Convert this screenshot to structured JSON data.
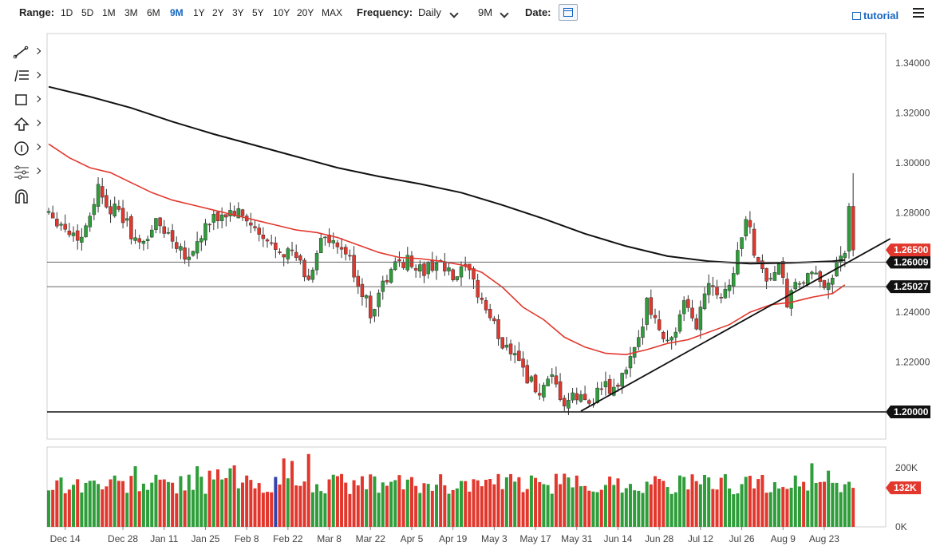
{
  "toolbar": {
    "range_label": "Range:",
    "ranges": [
      "1D",
      "5D",
      "1M",
      "3M",
      "6M",
      "9M",
      "1Y",
      "2Y",
      "3Y",
      "5Y",
      "10Y",
      "20Y",
      "MAX"
    ],
    "active_range": "9M",
    "frequency_label": "Frequency:",
    "frequency_value": "Daily",
    "period_value": "9M",
    "date_label": "Date:",
    "tutorial_label": "tutorial",
    "accent_color": "#1565c0"
  },
  "tools": [
    {
      "icon": "line-tool-icon"
    },
    {
      "icon": "fib-tool-icon"
    },
    {
      "icon": "rectangle-tool-icon"
    },
    {
      "icon": "arrow-tool-icon"
    },
    {
      "icon": "annotation-tool-icon"
    },
    {
      "icon": "pitchfork-tool-icon"
    },
    {
      "icon": "magnet-tool-icon"
    }
  ],
  "chart_data": {
    "type": "candlestick",
    "colors": {
      "up": "#2e9d3a",
      "down": "#e2372c",
      "ma50": "#e2372c",
      "ma200": "#111111",
      "volume_highlight": "#3344aa"
    },
    "ylim": [
      1.195,
      1.345
    ],
    "yticks": [
      "1.34000",
      "1.32000",
      "1.30000",
      "1.28000",
      "1.26000",
      "1.24000",
      "1.22000",
      "1.20000"
    ],
    "ytick_values": [
      1.34,
      1.32,
      1.3,
      1.28,
      1.26,
      1.24,
      1.22,
      1.2
    ],
    "xticks": [
      "Dec 14",
      "Dec 28",
      "Jan 11",
      "Jan 25",
      "Feb 8",
      "Feb 22",
      "Mar 8",
      "Mar 22",
      "Apr 5",
      "Apr 19",
      "May 3",
      "May 17",
      "May 31",
      "Jun 14",
      "Jun 28",
      "Jul 12",
      "Jul 26",
      "Aug 9",
      "Aug 23"
    ],
    "xtick_index": [
      4,
      18,
      28,
      38,
      48,
      58,
      68,
      78,
      88,
      98,
      108,
      118,
      128,
      138,
      148,
      158,
      168,
      178,
      188
    ],
    "n_bars": 188,
    "waypoints": [
      [
        0,
        1.281
      ],
      [
        5,
        1.272
      ],
      [
        8,
        1.27
      ],
      [
        12,
        1.29
      ],
      [
        15,
        1.282
      ],
      [
        18,
        1.278
      ],
      [
        22,
        1.266
      ],
      [
        26,
        1.276
      ],
      [
        30,
        1.27
      ],
      [
        34,
        1.262
      ],
      [
        38,
        1.274
      ],
      [
        42,
        1.279
      ],
      [
        45,
        1.28
      ],
      [
        48,
        1.277
      ],
      [
        52,
        1.268
      ],
      [
        56,
        1.266
      ],
      [
        60,
        1.262
      ],
      [
        63,
        1.252
      ],
      [
        66,
        1.271
      ],
      [
        69,
        1.266
      ],
      [
        72,
        1.264
      ],
      [
        75,
        1.252
      ],
      [
        78,
        1.24
      ],
      [
        81,
        1.251
      ],
      [
        85,
        1.261
      ],
      [
        88,
        1.26
      ],
      [
        91,
        1.256
      ],
      [
        94,
        1.261
      ],
      [
        98,
        1.253
      ],
      [
        101,
        1.257
      ],
      [
        104,
        1.248
      ],
      [
        107,
        1.238
      ],
      [
        110,
        1.227
      ],
      [
        113,
        1.225
      ],
      [
        116,
        1.214
      ],
      [
        119,
        1.207
      ],
      [
        122,
        1.212
      ],
      [
        125,
        1.203
      ],
      [
        128,
        1.206
      ],
      [
        131,
        1.204
      ],
      [
        134,
        1.21
      ],
      [
        137,
        1.208
      ],
      [
        140,
        1.217
      ],
      [
        143,
        1.227
      ],
      [
        145,
        1.247
      ],
      [
        148,
        1.232
      ],
      [
        151,
        1.229
      ],
      [
        154,
        1.242
      ],
      [
        157,
        1.235
      ],
      [
        160,
        1.254
      ],
      [
        163,
        1.247
      ],
      [
        166,
        1.256
      ],
      [
        169,
        1.279
      ],
      [
        171,
        1.265
      ],
      [
        174,
        1.253
      ],
      [
        177,
        1.258
      ],
      [
        179,
        1.244
      ],
      [
        182,
        1.252
      ],
      [
        185,
        1.254
      ],
      [
        188,
        1.252
      ],
      [
        190,
        1.255
      ],
      [
        192,
        1.26
      ],
      [
        193,
        1.266
      ],
      [
        194,
        1.282
      ],
      [
        195,
        1.265
      ]
    ],
    "support_lines": [
      {
        "y": 1.26009,
        "label": "1.26009"
      },
      {
        "y": 1.25027,
        "label": "1.25027"
      },
      {
        "y": 1.2,
        "label": "1.20000"
      }
    ],
    "trendline": [
      [
        129,
        1.2003
      ],
      [
        204,
        1.2695
      ]
    ],
    "last_price_label": "1.26500",
    "last_price": 1.265,
    "ma50": [
      [
        0,
        1.3075
      ],
      [
        5,
        1.302
      ],
      [
        10,
        1.298
      ],
      [
        15,
        1.296
      ],
      [
        20,
        1.292
      ],
      [
        25,
        1.288
      ],
      [
        30,
        1.285
      ],
      [
        35,
        1.283
      ],
      [
        40,
        1.281
      ],
      [
        45,
        1.279
      ],
      [
        50,
        1.277
      ],
      [
        55,
        1.275
      ],
      [
        60,
        1.273
      ],
      [
        65,
        1.272
      ],
      [
        70,
        1.27
      ],
      [
        75,
        1.267
      ],
      [
        80,
        1.264
      ],
      [
        85,
        1.262
      ],
      [
        90,
        1.2615
      ],
      [
        95,
        1.2605
      ],
      [
        100,
        1.259
      ],
      [
        105,
        1.256
      ],
      [
        110,
        1.25
      ],
      [
        115,
        1.242
      ],
      [
        120,
        1.237
      ],
      [
        125,
        1.23
      ],
      [
        130,
        1.226
      ],
      [
        135,
        1.2235
      ],
      [
        140,
        1.223
      ],
      [
        145,
        1.225
      ],
      [
        150,
        1.2275
      ],
      [
        155,
        1.229
      ],
      [
        160,
        1.232
      ],
      [
        165,
        1.235
      ],
      [
        170,
        1.24
      ],
      [
        175,
        1.243
      ],
      [
        180,
        1.244
      ],
      [
        185,
        1.246
      ],
      [
        190,
        1.2475
      ],
      [
        193,
        1.251
      ]
    ],
    "ma200": [
      [
        0,
        1.3305
      ],
      [
        10,
        1.3265
      ],
      [
        20,
        1.322
      ],
      [
        30,
        1.3165
      ],
      [
        40,
        1.3115
      ],
      [
        50,
        1.307
      ],
      [
        60,
        1.3025
      ],
      [
        70,
        1.298
      ],
      [
        80,
        1.2945
      ],
      [
        90,
        1.2915
      ],
      [
        100,
        1.288
      ],
      [
        110,
        1.283
      ],
      [
        120,
        1.2775
      ],
      [
        130,
        1.2715
      ],
      [
        140,
        1.2665
      ],
      [
        150,
        1.2625
      ],
      [
        160,
        1.2605
      ],
      [
        170,
        1.2595
      ],
      [
        180,
        1.2598
      ],
      [
        190,
        1.2605
      ],
      [
        193,
        1.261
      ]
    ],
    "volume": {
      "ylim": [
        0,
        270
      ],
      "ticks": [
        "200K",
        "0K"
      ],
      "tick_values": [
        200,
        0
      ],
      "last_label": "132K",
      "last_value": 132
    }
  }
}
